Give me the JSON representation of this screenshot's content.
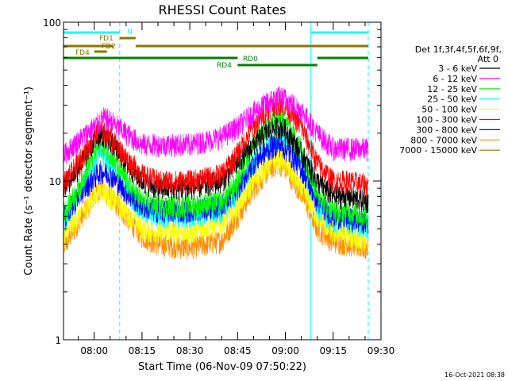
{
  "chart_data": {
    "type": "line",
    "title": "RHESSI Count Rates",
    "xlabel": "Start Time (06-Nov-09 07:50:22)",
    "ylabel": "Count Rate (s⁻¹ detector segment⁻¹)",
    "yscale": "log",
    "ylim": [
      1,
      100
    ],
    "xlim": [
      "07:50:22",
      "09:30"
    ],
    "x_ticks": [
      "08:00",
      "08:15",
      "08:30",
      "08:45",
      "09:00",
      "09:15",
      "09:30"
    ],
    "y_ticks": [
      "1",
      "10",
      "100"
    ],
    "legend_header": [
      "Det 1f,3f,4f,5f,6f,9f,",
      "Att 0"
    ],
    "legend_position": "right",
    "timestamp": "16-Oct-2021 08:38",
    "series": [
      {
        "name": "3 - 6 keV",
        "color": "#000000",
        "times": [
          "07:51",
          "07:55",
          "08:00",
          "08:02",
          "08:05",
          "08:10",
          "08:15",
          "08:20",
          "08:30",
          "08:40",
          "08:45",
          "08:50",
          "08:55",
          "08:58",
          "09:00",
          "09:05",
          "09:10",
          "09:15",
          "09:20",
          "09:25"
        ],
        "values": [
          9.5,
          12,
          18,
          20,
          18,
          13,
          10,
          9,
          9,
          10,
          13,
          17,
          21,
          22,
          21,
          15,
          10,
          8,
          8,
          7.5
        ]
      },
      {
        "name": "6 - 12 keV",
        "color": "#ff00ff",
        "times": [
          "07:51",
          "07:55",
          "08:00",
          "08:03",
          "08:05",
          "08:10",
          "08:15",
          "08:20",
          "08:30",
          "08:40",
          "08:45",
          "08:50",
          "08:55",
          "08:58",
          "09:00",
          "09:05",
          "09:10",
          "09:15",
          "09:20",
          "09:25"
        ],
        "values": [
          15,
          18,
          22,
          25,
          24,
          20,
          17,
          17,
          17,
          19,
          22,
          27,
          32,
          34,
          33,
          28,
          20,
          16,
          16,
          16
        ]
      },
      {
        "name": "12 - 25 keV",
        "color": "#00ff00",
        "times": [
          "07:51",
          "07:55",
          "08:00",
          "08:02",
          "08:05",
          "08:10",
          "08:15",
          "08:20",
          "08:30",
          "08:40",
          "08:45",
          "08:50",
          "08:55",
          "08:58",
          "09:00",
          "09:05",
          "09:10",
          "09:15",
          "09:20",
          "09:25"
        ],
        "values": [
          6.5,
          9,
          15,
          17,
          15,
          10,
          7.5,
          7,
          7,
          7.5,
          10,
          17,
          23,
          25,
          24,
          16,
          8.5,
          6.5,
          6.5,
          6
        ]
      },
      {
        "name": "25 - 50 keV",
        "color": "#00ffff",
        "times": [
          "07:51",
          "07:55",
          "08:00",
          "08:02",
          "08:05",
          "08:10",
          "08:15",
          "08:20",
          "08:30",
          "08:40",
          "08:45",
          "08:50",
          "08:55",
          "08:58",
          "09:00",
          "09:05",
          "09:10",
          "09:15",
          "09:20",
          "09:25"
        ],
        "values": [
          5.5,
          8,
          13,
          15,
          13,
          9,
          6.5,
          6,
          6,
          6.5,
          8.5,
          13,
          17,
          19,
          18,
          13,
          7,
          5.5,
          5.5,
          5.2
        ]
      },
      {
        "name": "50 - 100 keV",
        "color": "#ffff00",
        "times": [
          "07:51",
          "07:55",
          "08:00",
          "08:02",
          "08:05",
          "08:10",
          "08:15",
          "08:20",
          "08:30",
          "08:40",
          "08:45",
          "08:50",
          "08:55",
          "08:58",
          "09:00",
          "09:05",
          "09:10",
          "09:15",
          "09:20",
          "09:25"
        ],
        "values": [
          4.5,
          6,
          8,
          9,
          8,
          6.5,
          5,
          4.8,
          4.8,
          5.5,
          7,
          10,
          13,
          14,
          13,
          9,
          6,
          4.8,
          4.5,
          4.2
        ]
      },
      {
        "name": "100 - 300 keV",
        "color": "#ff0000",
        "times": [
          "07:51",
          "07:55",
          "08:00",
          "08:02",
          "08:05",
          "08:10",
          "08:15",
          "08:20",
          "08:30",
          "08:40",
          "08:45",
          "08:50",
          "08:55",
          "08:58",
          "09:00",
          "09:05",
          "09:10",
          "09:15",
          "09:20",
          "09:25"
        ],
        "values": [
          10,
          13,
          19,
          21,
          19,
          14,
          11,
          10,
          10,
          11,
          15,
          22,
          29,
          31,
          30,
          22,
          13,
          10,
          10,
          9.5
        ]
      },
      {
        "name": "300 - 800 keV",
        "color": "#0000ff",
        "times": [
          "07:51",
          "07:55",
          "08:00",
          "08:02",
          "08:05",
          "08:10",
          "08:15",
          "08:20",
          "08:30",
          "08:40",
          "08:45",
          "08:50",
          "08:55",
          "08:58",
          "09:00",
          "09:05",
          "09:10",
          "09:15",
          "09:20",
          "09:25"
        ],
        "values": [
          6,
          8,
          10.5,
          11.5,
          11,
          8.5,
          7,
          6.5,
          6.5,
          7,
          9,
          13,
          16,
          17,
          16,
          12,
          7.5,
          6,
          5.8,
          5.5
        ]
      },
      {
        "name": "800 - 7000 keV",
        "color": "#ff8c00",
        "times": [
          "07:51",
          "07:55",
          "08:00",
          "08:02",
          "08:05",
          "08:10",
          "08:15",
          "08:20",
          "08:30",
          "08:40",
          "08:45",
          "08:50",
          "08:55",
          "08:58",
          "09:00",
          "09:05",
          "09:10",
          "09:15",
          "09:20",
          "09:25"
        ],
        "values": [
          4,
          5.5,
          8,
          9,
          8,
          6,
          4.5,
          4,
          3.8,
          4.2,
          6,
          9,
          12,
          13,
          12,
          8.5,
          5,
          4.2,
          4,
          3.8
        ]
      },
      {
        "name": "7000 - 15000 keV",
        "color": "#8b7500",
        "times": [],
        "values": []
      }
    ],
    "state_bars": [
      {
        "label": "N",
        "color": "#00ffff",
        "segments": [
          [
            "07:50:22",
            "08:08"
          ],
          [
            "09:08",
            "09:26"
          ]
        ]
      },
      {
        "label": "FD1",
        "color": "#8b7500",
        "segments": [
          [
            "08:08",
            "08:13"
          ]
        ]
      },
      {
        "label": "FD2",
        "color": "#8b7500",
        "segments": [
          [
            "07:50:22",
            "08:06"
          ],
          [
            "08:13",
            "09:26"
          ]
        ]
      },
      {
        "label": "FD4",
        "color": "#8b7500",
        "segments": [
          [
            "08:00",
            "08:04"
          ]
        ]
      },
      {
        "label": "RD0",
        "color": "#008000",
        "segments": [
          [
            "07:50:22",
            "08:45"
          ],
          [
            "09:10",
            "09:26"
          ]
        ]
      },
      {
        "label": "RD4",
        "color": "#008000",
        "segments": [
          [
            "08:45",
            "09:10"
          ]
        ]
      }
    ],
    "vertical_markers": [
      {
        "time": "07:50:22",
        "style": "solid",
        "color": "#00ffff"
      },
      {
        "time": "08:08",
        "style": "dashed",
        "color": "#00ffff"
      },
      {
        "time": "09:08",
        "style": "solid",
        "color": "#00ffff"
      },
      {
        "time": "09:26",
        "style": "dashed",
        "color": "#00ffff"
      }
    ]
  }
}
